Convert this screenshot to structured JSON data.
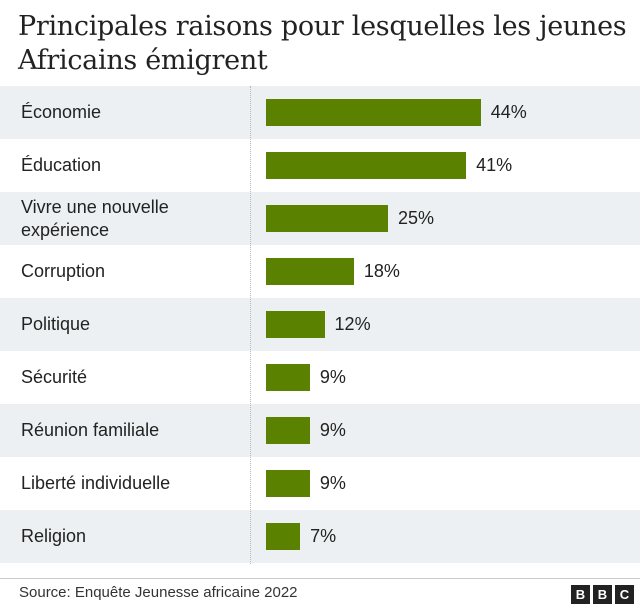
{
  "chart_data": {
    "type": "bar",
    "orientation": "horizontal",
    "title": "Principales raisons pour lesquelles les jeunes Africains émigrent",
    "categories": [
      "Économie",
      "Éducation",
      "Vivre une nouvelle expérience",
      "Corruption",
      "Politique",
      "Sécurité",
      "Réunion familiale",
      "Liberté individuelle",
      "Religion"
    ],
    "values": [
      44,
      41,
      25,
      18,
      12,
      9,
      9,
      9,
      7
    ],
    "value_labels": [
      "44%",
      "41%",
      "25%",
      "18%",
      "12%",
      "9%",
      "9%",
      "9%",
      "7%"
    ],
    "unit": "%",
    "xlim": [
      0,
      100
    ],
    "bar_color": "#5a8200",
    "row_shading": "alternating",
    "grid": false,
    "legend": "none"
  },
  "footer": {
    "source": "Source: Enquête Jeunesse africaine 2022",
    "logo": [
      "B",
      "B",
      "C"
    ]
  }
}
